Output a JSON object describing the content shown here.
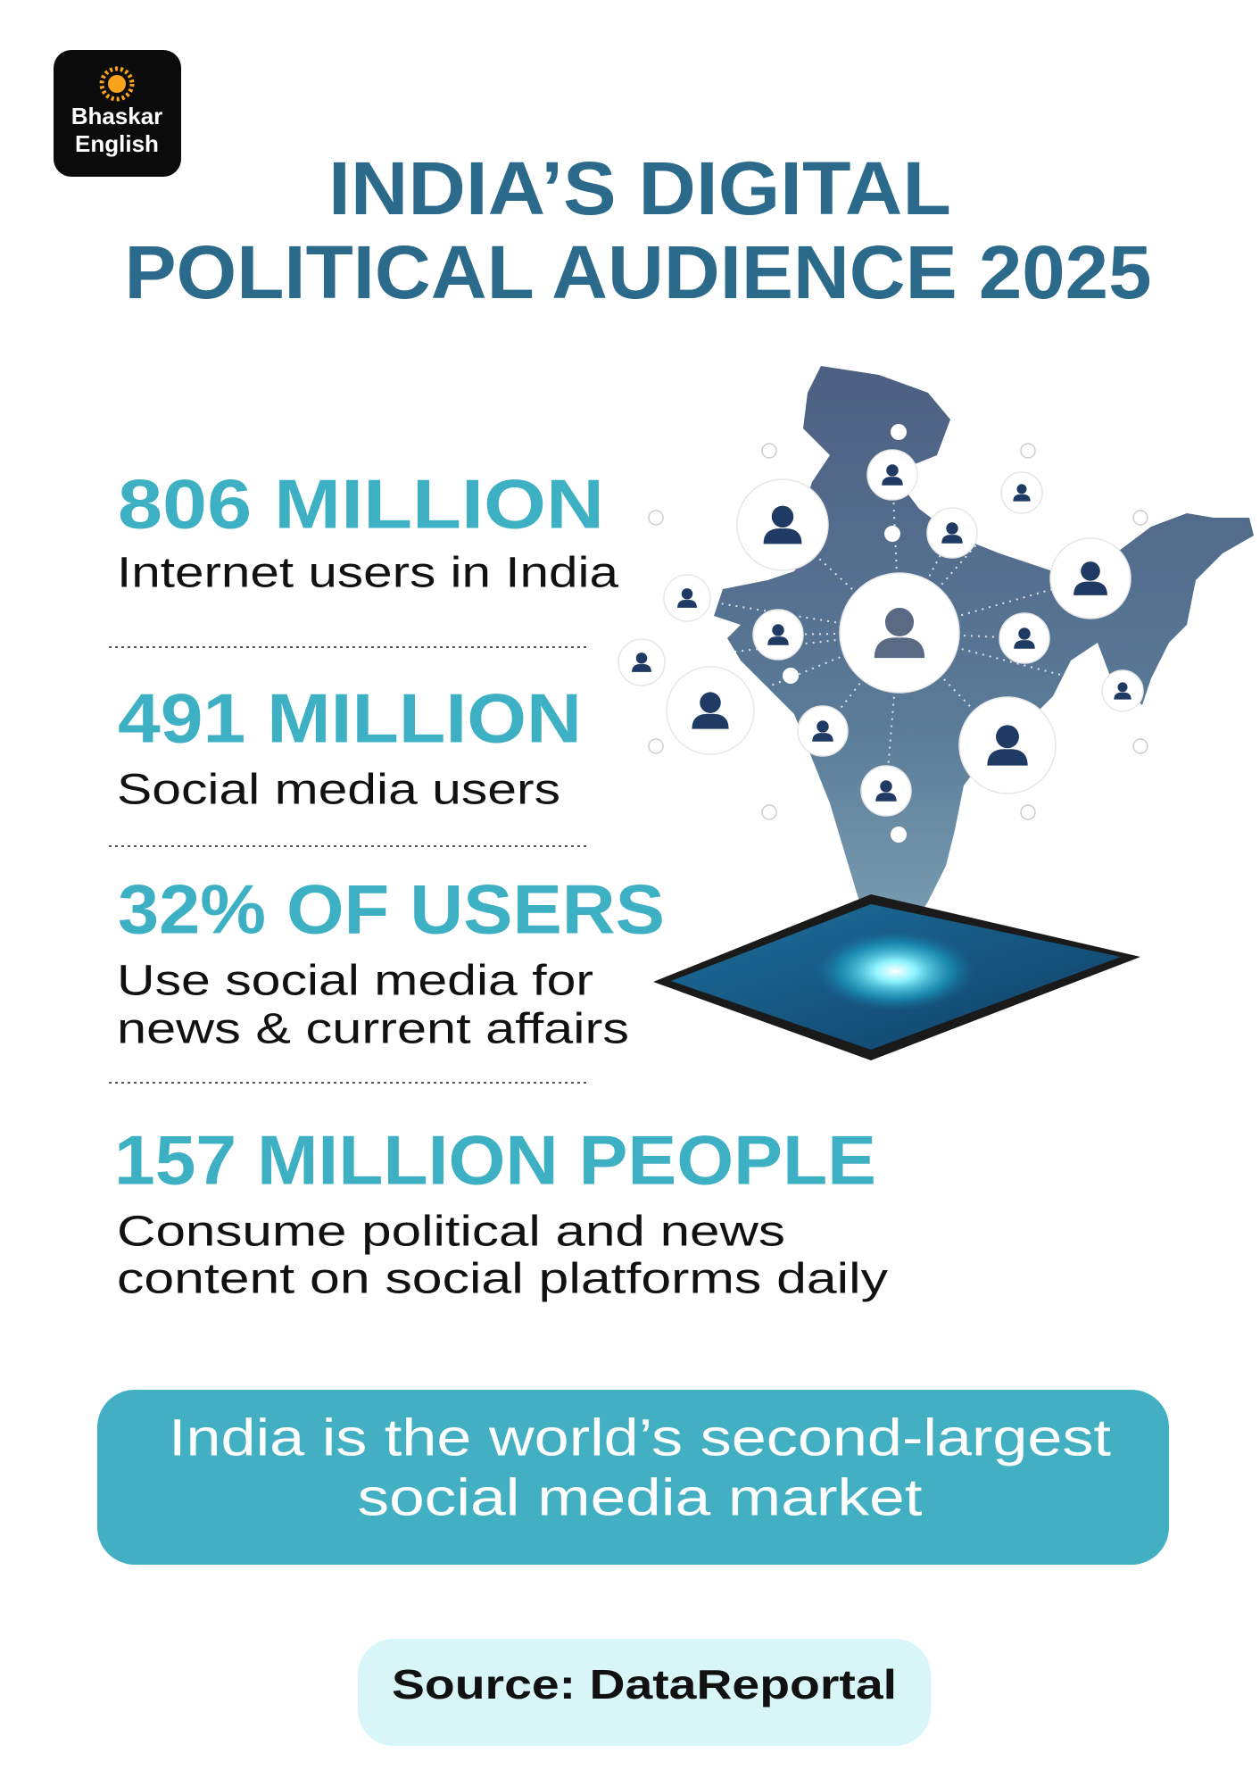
{
  "logo": {
    "lines": [
      "Bhaskar",
      "English"
    ]
  },
  "header": {
    "title_lines": [
      "INDIA’S DIGITAL",
      "POLITICAL AUDIENCE 2025"
    ]
  },
  "stats": [
    {
      "headline": "806 MILLION",
      "description_lines": [
        "Internet users in India"
      ]
    },
    {
      "headline": "491 MILLION",
      "description_lines": [
        "Social media users"
      ]
    },
    {
      "headline": "32% OF USERS",
      "description_lines": [
        "Use social media for",
        "news & current affairs"
      ]
    },
    {
      "headline": "157 MILLION PEOPLE",
      "description_lines": [
        "Consume political and news",
        "content on social platforms daily"
      ]
    }
  ],
  "callout": {
    "lines": [
      "India is the world’s second-largest",
      "social media market"
    ]
  },
  "footer": {
    "source": "Source: DataReportal"
  }
}
